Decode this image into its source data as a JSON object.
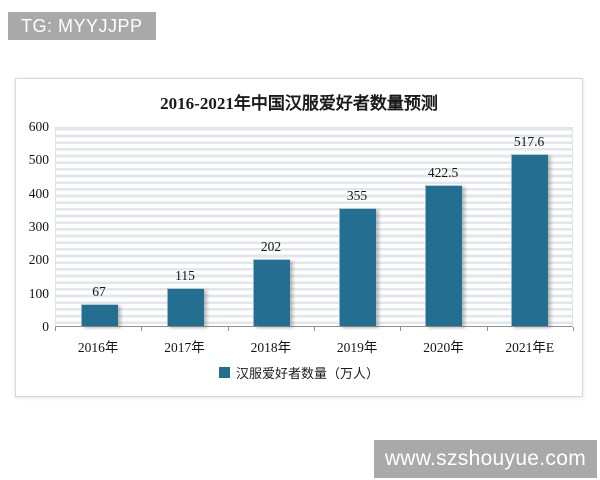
{
  "badges": {
    "top_left": "TG: MYYJJPP",
    "bottom_right": "www.szshouyue.com"
  },
  "chart_data": {
    "type": "bar",
    "title": "2016-2021年中国汉服爱好者数量预测",
    "categories": [
      "2016年",
      "2017年",
      "2018年",
      "2019年",
      "2020年",
      "2021年E"
    ],
    "values": [
      67,
      115,
      202,
      355,
      422.5,
      517.6
    ],
    "value_labels": [
      "67",
      "115",
      "202",
      "355",
      "422.5",
      "517.6"
    ],
    "legend": [
      "汉服爱好者数量（万人）"
    ],
    "legend_position": "bottom",
    "xlabel": "",
    "ylabel": "",
    "ylim": [
      0,
      600
    ],
    "yticks": [
      0,
      100,
      200,
      300,
      400,
      500,
      600
    ],
    "grid": "horizontal-minor-stripes",
    "bar_color": "#246e92",
    "badge_bg_color": "#a9a9a9"
  }
}
